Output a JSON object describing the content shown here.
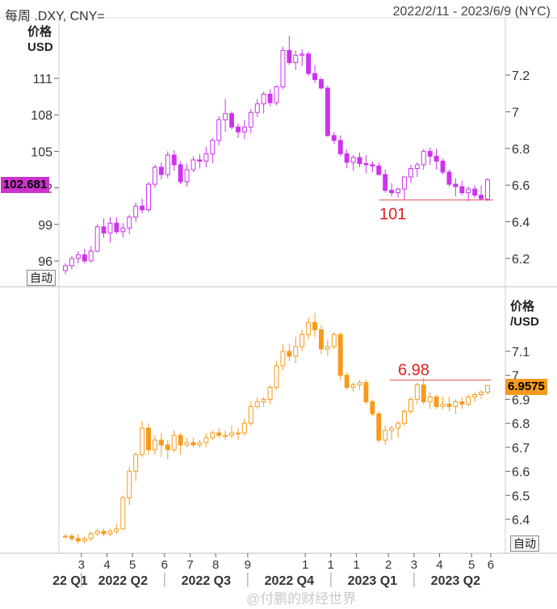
{
  "header": {
    "symbols": "每周 .DXY, CNY=",
    "date_range": "2022/2/11 - 2023/6/9 (NYC)"
  },
  "colors": {
    "dxy_series": "#cc33ee",
    "cny_series": "#f59a1c",
    "reference_line": "#e05050",
    "grid": "#d8d8d8"
  },
  "buttons": {
    "auto_left": "自动",
    "auto_right": "自动"
  },
  "watermark": "@付鹏的财经世界",
  "chart_data": [
    {
      "type": "candlestick",
      "series": [
        {
          "name": ".DXY"
        }
      ],
      "ylabel": "价格\nUSD",
      "left_axis": {
        "ticks": [
          96,
          99,
          102,
          105,
          108,
          111
        ],
        "range": [
          94.5,
          114.7
        ]
      },
      "right_axis": {
        "ticks": [
          "6.2",
          "6.4",
          "6.6",
          "6.8",
          "7",
          "7.2"
        ],
        "range": [
          6.07,
          7.31
        ]
      },
      "last_value_label": "102.681",
      "reference_line": {
        "value": 101,
        "label": "101"
      },
      "candles_ohlc": [
        [
          95.2,
          95.8,
          94.9,
          95.6
        ],
        [
          95.6,
          96.4,
          95.3,
          96.2
        ],
        [
          96.2,
          96.8,
          95.8,
          96.5
        ],
        [
          96.5,
          97.0,
          95.8,
          96.0
        ],
        [
          96.0,
          97.2,
          95.9,
          96.8
        ],
        [
          96.8,
          99.0,
          96.7,
          98.8
        ],
        [
          98.8,
          99.5,
          97.9,
          98.3
        ],
        [
          98.3,
          99.6,
          97.5,
          99.1
        ],
        [
          99.1,
          99.6,
          98.2,
          98.4
        ],
        [
          98.4,
          99.1,
          97.9,
          98.7
        ],
        [
          98.7,
          99.8,
          98.2,
          99.6
        ],
        [
          99.6,
          100.8,
          99.2,
          100.5
        ],
        [
          100.5,
          101.1,
          99.9,
          100.2
        ],
        [
          100.2,
          102.5,
          100.0,
          102.3
        ],
        [
          102.3,
          103.9,
          102.0,
          103.7
        ],
        [
          103.7,
          104.1,
          102.7,
          103.1
        ],
        [
          103.1,
          105.0,
          102.8,
          104.7
        ],
        [
          104.7,
          105.1,
          103.4,
          103.9
        ],
        [
          103.9,
          104.2,
          102.3,
          102.5
        ],
        [
          102.5,
          104.0,
          102.1,
          103.5
        ],
        [
          103.5,
          104.6,
          103.3,
          104.3
        ],
        [
          104.3,
          104.8,
          103.6,
          104.2
        ],
        [
          104.2,
          105.4,
          103.7,
          104.8
        ],
        [
          104.8,
          106.1,
          104.0,
          105.9
        ],
        [
          105.9,
          107.9,
          105.5,
          107.6
        ],
        [
          107.6,
          109.3,
          106.6,
          108.1
        ],
        [
          108.1,
          108.3,
          106.8,
          107.0
        ],
        [
          107.0,
          107.3,
          106.1,
          106.6
        ],
        [
          106.6,
          107.6,
          106.0,
          107.0
        ],
        [
          107.0,
          108.5,
          106.5,
          108.2
        ],
        [
          108.2,
          109.3,
          107.8,
          108.9
        ],
        [
          108.9,
          109.9,
          108.1,
          109.7
        ],
        [
          109.7,
          110.1,
          108.7,
          109.0
        ],
        [
          109.0,
          110.4,
          108.8,
          110.3
        ],
        [
          110.3,
          113.6,
          110.1,
          113.3
        ],
        [
          113.3,
          114.5,
          112.1,
          112.3
        ],
        [
          112.3,
          113.3,
          111.7,
          112.9
        ],
        [
          112.9,
          113.4,
          112.0,
          113.0
        ],
        [
          113.0,
          113.2,
          111.2,
          111.4
        ],
        [
          111.4,
          112.1,
          110.6,
          110.9
        ],
        [
          110.9,
          111.1,
          110.1,
          110.2
        ],
        [
          110.2,
          110.4,
          106.2,
          106.3
        ],
        [
          106.3,
          106.6,
          105.6,
          105.9
        ],
        [
          105.9,
          106.3,
          104.6,
          104.8
        ],
        [
          104.8,
          105.2,
          103.6,
          104.1
        ],
        [
          104.1,
          104.7,
          103.4,
          104.5
        ],
        [
          104.5,
          104.9,
          103.7,
          104.0
        ],
        [
          104.0,
          104.7,
          103.2,
          103.9
        ],
        [
          103.9,
          104.2,
          103.3,
          103.8
        ],
        [
          103.8,
          104.1,
          103.0,
          103.1
        ],
        [
          103.1,
          103.5,
          101.6,
          101.8
        ],
        [
          101.8,
          102.4,
          101.3,
          101.6
        ],
        [
          101.6,
          102.0,
          101.2,
          101.9
        ],
        [
          101.9,
          102.8,
          101.0,
          102.9
        ],
        [
          102.9,
          103.9,
          102.4,
          103.6
        ],
        [
          103.6,
          104.1,
          102.9,
          103.9
        ],
        [
          103.9,
          105.2,
          103.5,
          105.0
        ],
        [
          105.0,
          105.3,
          103.9,
          104.6
        ],
        [
          104.6,
          105.2,
          103.5,
          104.2
        ],
        [
          104.2,
          104.4,
          103.1,
          103.3
        ],
        [
          103.3,
          103.5,
          102.1,
          102.3
        ],
        [
          102.3,
          102.8,
          101.3,
          102.1
        ],
        [
          102.1,
          102.6,
          101.4,
          101.6
        ],
        [
          101.6,
          102.1,
          100.9,
          101.9
        ],
        [
          101.9,
          102.2,
          101.2,
          101.4
        ],
        [
          101.4,
          102.2,
          101.0,
          101.1
        ],
        [
          101.1,
          102.8,
          100.9,
          102.681
        ]
      ]
    },
    {
      "type": "candlestick",
      "series": [
        {
          "name": "CNY="
        }
      ],
      "ylabel": "价格\n/USD",
      "right_axis": {
        "ticks": [
          "6.4",
          "6.5",
          "6.6",
          "6.7",
          "6.8",
          "6.9",
          "7",
          "7.1"
        ],
        "range": [
          6.27,
          7.28
        ]
      },
      "last_value_label": "6.9575",
      "reference_line": {
        "value": 6.98,
        "label": "6.98"
      },
      "candles_ohlc": [
        [
          6.33,
          6.34,
          6.32,
          6.33
        ],
        [
          6.33,
          6.34,
          6.31,
          6.32
        ],
        [
          6.32,
          6.34,
          6.3,
          6.31
        ],
        [
          6.31,
          6.33,
          6.3,
          6.32
        ],
        [
          6.32,
          6.35,
          6.31,
          6.34
        ],
        [
          6.34,
          6.36,
          6.33,
          6.35
        ],
        [
          6.35,
          6.36,
          6.33,
          6.34
        ],
        [
          6.34,
          6.36,
          6.33,
          6.35
        ],
        [
          6.35,
          6.38,
          6.34,
          6.36
        ],
        [
          6.36,
          6.5,
          6.36,
          6.49
        ],
        [
          6.49,
          6.62,
          6.46,
          6.6
        ],
        [
          6.6,
          6.68,
          6.56,
          6.67
        ],
        [
          6.67,
          6.81,
          6.66,
          6.78
        ],
        [
          6.78,
          6.8,
          6.67,
          6.69
        ],
        [
          6.69,
          6.75,
          6.67,
          6.73
        ],
        [
          6.73,
          6.76,
          6.66,
          6.71
        ],
        [
          6.71,
          6.73,
          6.65,
          6.69
        ],
        [
          6.69,
          6.77,
          6.68,
          6.75
        ],
        [
          6.75,
          6.76,
          6.67,
          6.71
        ],
        [
          6.71,
          6.74,
          6.7,
          6.72
        ],
        [
          6.72,
          6.74,
          6.7,
          6.71
        ],
        [
          6.71,
          6.73,
          6.7,
          6.72
        ],
        [
          6.72,
          6.76,
          6.7,
          6.74
        ],
        [
          6.74,
          6.77,
          6.73,
          6.76
        ],
        [
          6.76,
          6.78,
          6.74,
          6.75
        ],
        [
          6.75,
          6.77,
          6.73,
          6.75
        ],
        [
          6.75,
          6.79,
          6.74,
          6.76
        ],
        [
          6.76,
          6.78,
          6.73,
          6.76
        ],
        [
          6.76,
          6.82,
          6.75,
          6.8
        ],
        [
          6.8,
          6.89,
          6.79,
          6.87
        ],
        [
          6.87,
          6.91,
          6.86,
          6.89
        ],
        [
          6.89,
          6.91,
          6.87,
          6.9
        ],
        [
          6.9,
          6.96,
          6.88,
          6.95
        ],
        [
          6.95,
          7.06,
          6.94,
          7.04
        ],
        [
          7.04,
          7.13,
          7.02,
          7.1
        ],
        [
          7.1,
          7.13,
          7.06,
          7.08
        ],
        [
          7.08,
          7.16,
          7.05,
          7.12
        ],
        [
          7.12,
          7.19,
          7.1,
          7.17
        ],
        [
          7.17,
          7.24,
          7.15,
          7.22
        ],
        [
          7.22,
          7.26,
          7.16,
          7.19
        ],
        [
          7.19,
          7.21,
          7.09,
          7.11
        ],
        [
          7.11,
          7.15,
          7.08,
          7.12
        ],
        [
          7.12,
          7.18,
          7.11,
          7.17
        ],
        [
          7.17,
          7.18,
          6.98,
          7.0
        ],
        [
          7.0,
          7.01,
          6.94,
          6.95
        ],
        [
          6.95,
          6.97,
          6.93,
          6.96
        ],
        [
          6.96,
          6.98,
          6.94,
          6.97
        ],
        [
          6.97,
          6.98,
          6.88,
          6.89
        ],
        [
          6.89,
          6.9,
          6.83,
          6.84
        ],
        [
          6.84,
          6.85,
          6.72,
          6.73
        ],
        [
          6.73,
          6.79,
          6.71,
          6.77
        ],
        [
          6.77,
          6.79,
          6.73,
          6.78
        ],
        [
          6.78,
          6.81,
          6.74,
          6.8
        ],
        [
          6.8,
          6.86,
          6.79,
          6.85
        ],
        [
          6.85,
          6.91,
          6.84,
          6.9
        ],
        [
          6.9,
          6.97,
          6.88,
          6.96
        ],
        [
          6.96,
          6.99,
          6.88,
          6.89
        ],
        [
          6.89,
          6.93,
          6.86,
          6.91
        ],
        [
          6.91,
          6.92,
          6.86,
          6.87
        ],
        [
          6.87,
          6.91,
          6.86,
          6.88
        ],
        [
          6.88,
          6.91,
          6.85,
          6.87
        ],
        [
          6.87,
          6.9,
          6.84,
          6.89
        ],
        [
          6.89,
          6.91,
          6.86,
          6.88
        ],
        [
          6.88,
          6.92,
          6.87,
          6.91
        ],
        [
          6.91,
          6.93,
          6.89,
          6.92
        ],
        [
          6.92,
          6.94,
          6.9,
          6.93
        ],
        [
          6.93,
          6.96,
          6.92,
          6.9575
        ]
      ]
    }
  ],
  "x_axis": {
    "month_ticks": [
      "3",
      "4",
      "5",
      "6",
      "7",
      "8",
      "9",
      "1",
      "1",
      "1",
      "2",
      "3",
      "4",
      "5",
      "6"
    ],
    "quarters": [
      "22 Q1",
      "2022 Q2",
      "2022 Q3",
      "2022 Q4",
      "2023 Q1",
      "2023 Q2"
    ]
  }
}
